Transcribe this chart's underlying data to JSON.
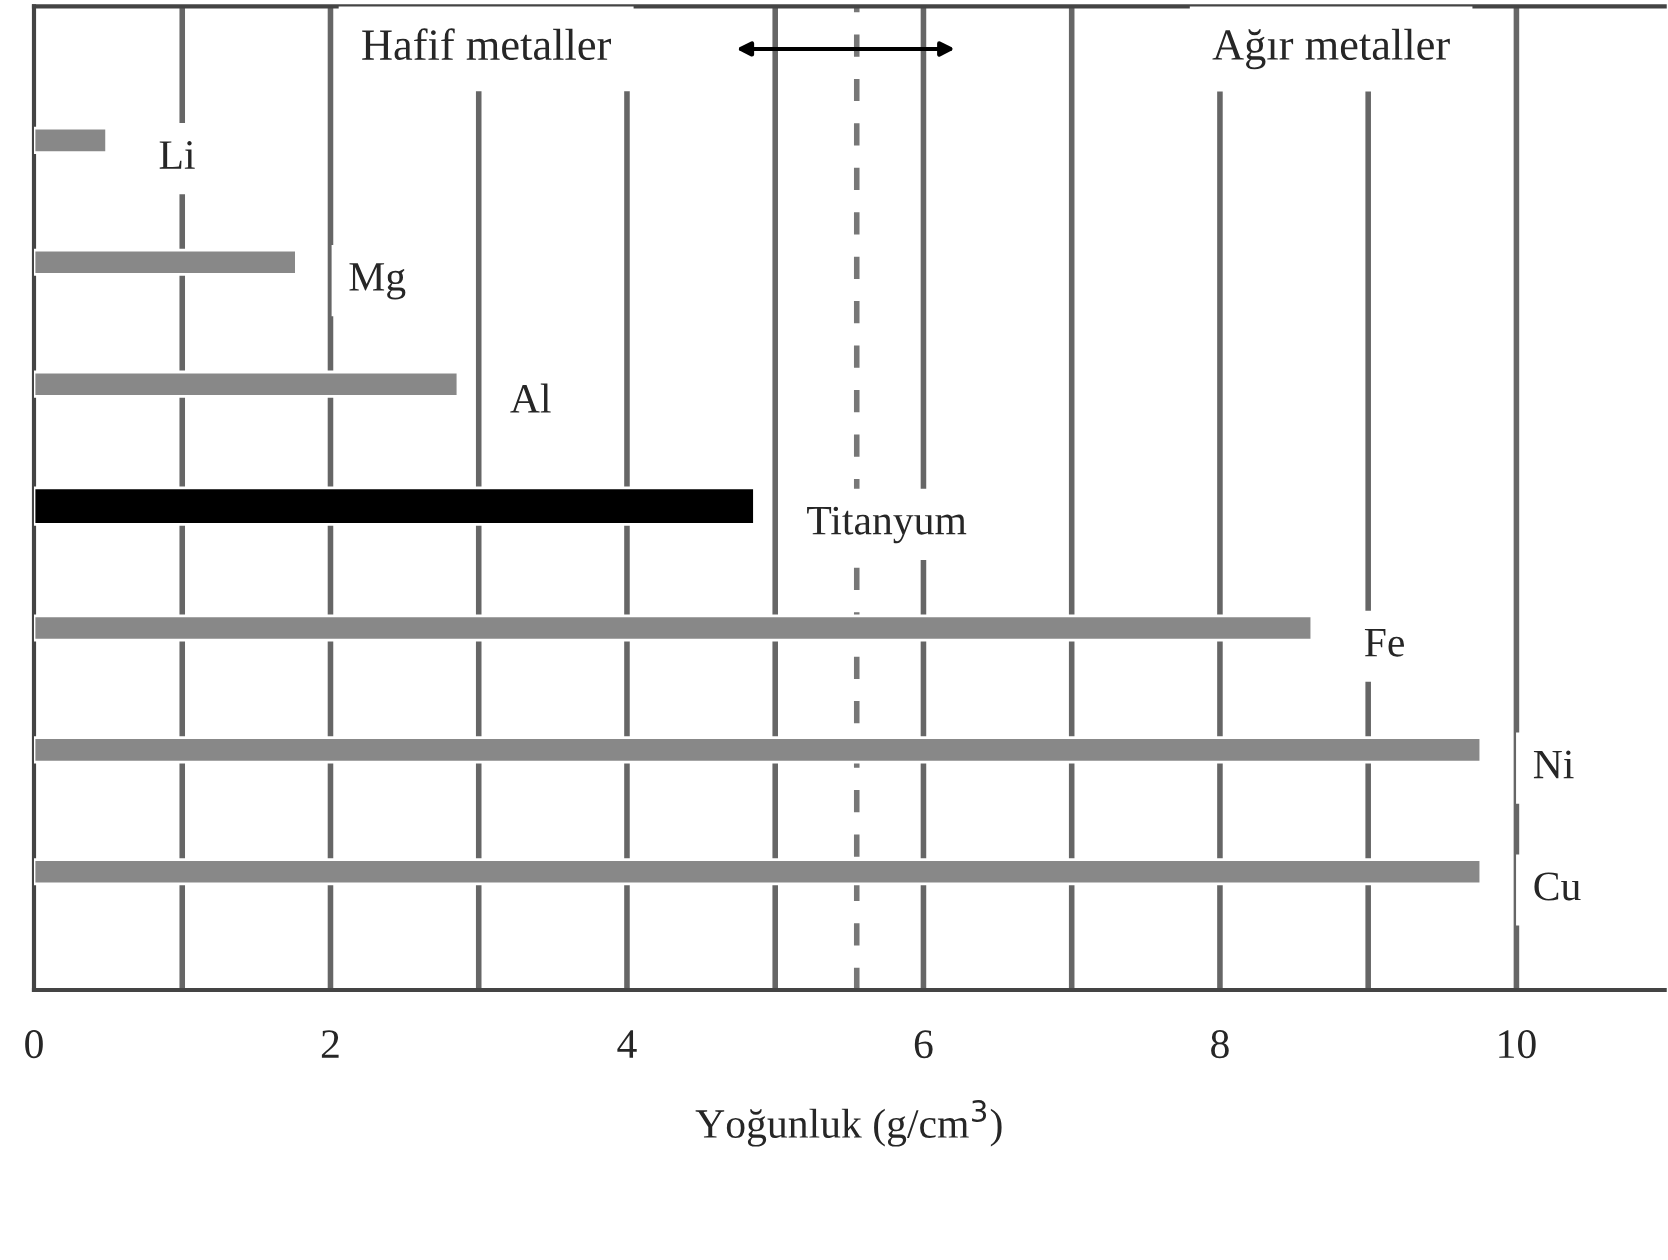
{
  "chart_data": {
    "type": "bar",
    "orientation": "horizontal",
    "xlabel": "Yoğunluk (g/cm$^{3}$)",
    "categories": [
      "Li",
      "Mg",
      "Al",
      "Titanyum",
      "Fe",
      "Ni",
      "Cu"
    ],
    "values": [
      0.49,
      1.77,
      2.86,
      4.86,
      8.62,
      9.76,
      9.76
    ],
    "colors": [
      "#888888",
      "#888888",
      "#888888",
      "#000000",
      "#888888",
      "#888888",
      "#888888"
    ],
    "xlim": [
      0,
      11
    ],
    "xticks": [
      0,
      {
        "value": 1,
        "label": null
      },
      2,
      {
        "value": 3,
        "label": null
      },
      4,
      {
        "value": 5,
        "label": null
      },
      6,
      {
        "value": 7,
        "label": null
      },
      8,
      {
        "value": 9,
        "label": null
      },
      10
    ],
    "grid": "x",
    "tick_labels": "x",
    "ref_lines": [
      {
        "axis": "x",
        "value": 5.55,
        "color": "#777777",
        "line_style": "dashed"
      }
    ],
    "annotations": [
      "Hafif metaller",
      "Ağır metaller"
    ]
  }
}
